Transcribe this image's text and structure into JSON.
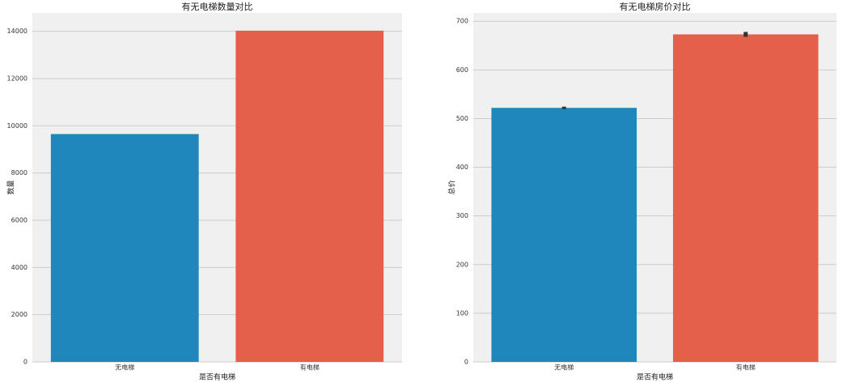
{
  "chart_data": [
    {
      "type": "bar",
      "title": "有无电梯数量对比",
      "x_label": "是否有电梯",
      "y_label": "数量",
      "categories": [
        "无电梯",
        "有电梯"
      ],
      "values": [
        9650,
        14030
      ],
      "colors": [
        "#1f87bb",
        "#e4604a"
      ],
      "ylim": [
        0,
        14780
      ],
      "yticks": [
        0,
        2000,
        4000,
        6000,
        8000,
        10000,
        12000,
        14000
      ],
      "grid": true
    },
    {
      "type": "bar",
      "title": "有无电梯房价对比",
      "x_label": "是否有电梯",
      "y_label": "总价",
      "categories": [
        "无电梯",
        "有电梯"
      ],
      "values": [
        522,
        673
      ],
      "errors": [
        2.5,
        5
      ],
      "colors": [
        "#1f87bb",
        "#e4604a"
      ],
      "ylim": [
        0,
        717
      ],
      "yticks": [
        0,
        100,
        200,
        300,
        400,
        500,
        600,
        700
      ],
      "grid": true
    }
  ]
}
